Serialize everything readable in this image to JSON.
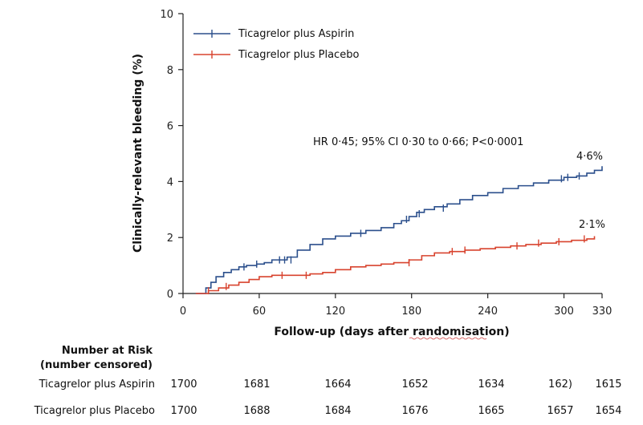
{
  "chart_data": {
    "type": "line",
    "ylabel": "Clinically-relevant bleeding (%)",
    "xlabel": "Follow-up (days after randomisation)",
    "xlim": [
      0,
      330
    ],
    "ylim": [
      0,
      10
    ],
    "x_ticks": [
      0,
      60,
      120,
      180,
      240,
      300,
      330
    ],
    "y_ticks": [
      0,
      2,
      4,
      6,
      8,
      10
    ],
    "grid": false,
    "legend_position": "top-left",
    "annotation": "HR 0·45; 95% CI 0·30 to 0·66; P<0·0001",
    "series": [
      {
        "name": "Ticagrelor plus Aspirin",
        "color": "#2b4f8c",
        "end_label": "4·6%",
        "x": [
          10,
          18,
          22,
          26,
          32,
          38,
          44,
          50,
          58,
          64,
          70,
          76,
          82,
          90,
          100,
          110,
          120,
          132,
          144,
          156,
          166,
          172,
          178,
          184,
          190,
          198,
          208,
          218,
          228,
          240,
          252,
          264,
          276,
          288,
          300,
          310,
          318,
          324,
          330
        ],
        "y": [
          0.0,
          0.2,
          0.4,
          0.6,
          0.75,
          0.85,
          0.95,
          1.0,
          1.05,
          1.1,
          1.2,
          1.2,
          1.3,
          1.55,
          1.75,
          1.95,
          2.05,
          2.15,
          2.25,
          2.35,
          2.5,
          2.6,
          2.75,
          2.9,
          3.0,
          3.1,
          3.2,
          3.35,
          3.5,
          3.6,
          3.75,
          3.85,
          3.95,
          4.05,
          4.15,
          4.2,
          4.3,
          4.4,
          4.55
        ],
        "censor_x": [
          48,
          58,
          76,
          80,
          85,
          140,
          176,
          186,
          205,
          298,
          303,
          312
        ],
        "censor_y": [
          0.95,
          1.05,
          1.2,
          1.2,
          1.2,
          2.15,
          2.65,
          2.85,
          3.05,
          4.1,
          4.15,
          4.2
        ]
      },
      {
        "name": "Ticagrelor plus Placebo",
        "color": "#d8432e",
        "end_label": "2·1%",
        "x": [
          10,
          20,
          28,
          36,
          44,
          52,
          60,
          70,
          80,
          90,
          100,
          110,
          120,
          132,
          144,
          156,
          166,
          178,
          188,
          198,
          210,
          222,
          234,
          246,
          258,
          270,
          282,
          294,
          306,
          318,
          324
        ],
        "y": [
          0.0,
          0.1,
          0.2,
          0.3,
          0.4,
          0.5,
          0.6,
          0.65,
          0.65,
          0.65,
          0.7,
          0.75,
          0.85,
          0.95,
          1.0,
          1.05,
          1.1,
          1.2,
          1.35,
          1.45,
          1.5,
          1.55,
          1.6,
          1.65,
          1.7,
          1.75,
          1.8,
          1.85,
          1.9,
          1.95,
          2.05
        ],
        "censor_x": [
          20,
          34,
          78,
          97,
          178,
          212,
          222,
          263,
          280,
          296,
          316
        ],
        "censor_y": [
          0.1,
          0.25,
          0.65,
          0.65,
          1.1,
          1.5,
          1.55,
          1.7,
          1.8,
          1.85,
          1.95
        ]
      }
    ]
  },
  "risk_table": {
    "header_line1": "Number at Risk",
    "header_line2": "(number censored)",
    "rows": [
      {
        "name": "Ticagrelor plus Aspirin",
        "values": [
          "1700",
          "1681",
          "1664",
          "1652",
          "1634",
          "162)",
          "1615"
        ]
      },
      {
        "name": "Ticagrelor plus Placebo",
        "values": [
          "1700",
          "1688",
          "1684",
          "1676",
          "1665",
          "1657",
          "1654"
        ]
      }
    ]
  }
}
